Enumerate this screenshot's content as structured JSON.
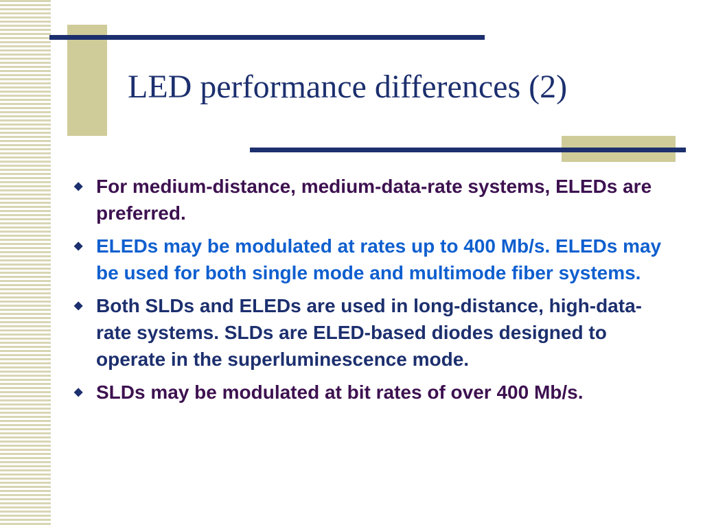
{
  "slide": {
    "title": "LED performance differences (2)",
    "bullets": [
      {
        "text": "For medium-distance, medium-data-rate systems, ELEDs are preferred.",
        "color": "#3d1150"
      },
      {
        "text": "ELEDs may be modulated at rates up to 400 Mb/s. ELEDs may be used for both single mode and multimode fiber systems.",
        "color": "#0f5fcf"
      },
      {
        "text": "Both SLDs and ELEDs are used in long-distance, high-data-rate systems. SLDs are ELED-based diodes designed to operate in the superluminescence mode.",
        "color": "#1c2f6e"
      },
      {
        "text": "SLDs may be modulated at bit rates of over 400 Mb/s.",
        "color": "#3d1150"
      }
    ],
    "bullet_marker": "◆",
    "colors": {
      "accent_line": "#1c2f6e",
      "accent_block": "#cfcc9a",
      "stripe": "#d8d5b3",
      "title": "#1c2f6e"
    }
  }
}
